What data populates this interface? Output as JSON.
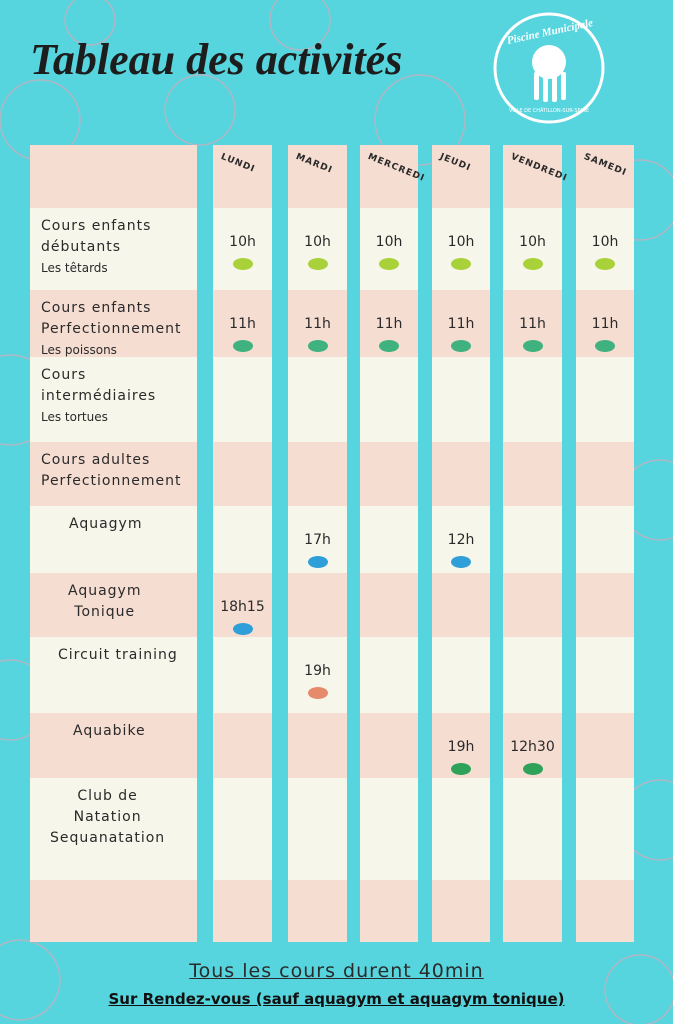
{
  "header": {
    "title": "Tableau des activités",
    "logo": {
      "name": "Piscine Municipale",
      "town": "VILLE DE CHÂTILLON-SUR-SEINE"
    }
  },
  "table": {
    "days": [
      "LUNDI",
      "MARDI",
      "MERCREDI",
      "JEUDI",
      "VENDREDI",
      "SAMEDI"
    ],
    "rows": [
      {
        "activity": [
          "Cours enfants",
          "débutants"
        ],
        "group": "Les têtards",
        "times": [
          "10h",
          "10h",
          "10h",
          "10h",
          "10h",
          "10h"
        ]
      },
      {
        "activity": [
          "Cours enfants",
          "Perfectionnement"
        ],
        "group": "Les poissons",
        "times": [
          "11h",
          "11h",
          "11h",
          "11h",
          "11h",
          "11h"
        ]
      },
      {
        "activity": [
          "Cours",
          "intermédiaires"
        ],
        "group": "Les tortues",
        "times": [
          null,
          null,
          null,
          null,
          null,
          null
        ]
      },
      {
        "activity": [
          "Cours adultes",
          "Perfectionnement"
        ],
        "group": null,
        "times": [
          null,
          null,
          null,
          null,
          null,
          null
        ]
      },
      {
        "activity": [
          "Aquagym"
        ],
        "group": null,
        "times": [
          null,
          "17h",
          null,
          "12h",
          null,
          null
        ]
      },
      {
        "activity": [
          "Aquagym",
          "Tonique"
        ],
        "group": null,
        "times": [
          "18h15",
          null,
          null,
          null,
          null,
          null
        ]
      },
      {
        "activity": [
          "Circuit training"
        ],
        "group": null,
        "times": [
          null,
          "19h",
          null,
          null,
          null,
          null
        ]
      },
      {
        "activity": [
          "Aquabike"
        ],
        "group": null,
        "times": [
          null,
          null,
          null,
          "19h",
          "12h30",
          null
        ]
      },
      {
        "activity": [
          "Club de",
          "Natation",
          "Sequanatation"
        ],
        "group": null,
        "times": [
          null,
          null,
          null,
          null,
          null,
          null
        ]
      }
    ]
  },
  "footer": {
    "duration": "Tous les cours durent 40min",
    "note": "Sur Rendez-vous (sauf aquagym et aquagym tonique)"
  }
}
